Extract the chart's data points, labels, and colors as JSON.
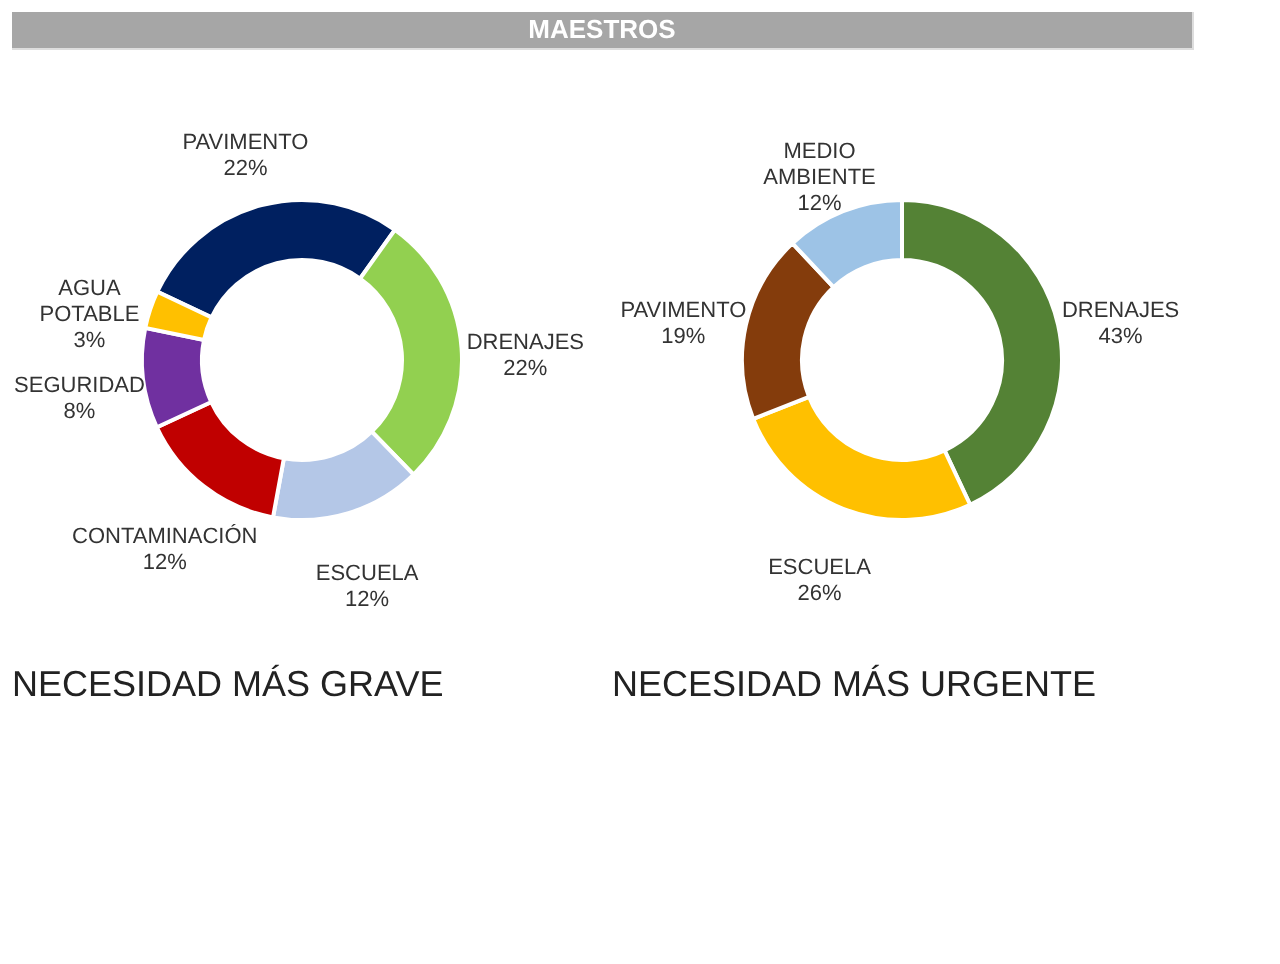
{
  "chart_data": [
    {
      "type": "donut",
      "title": "NECESIDAD MÁS GRAVE",
      "annotations": [
        "MAESTROS"
      ],
      "categories": [
        "PAVIMENTO",
        "DRENAJES",
        "ESCUELA",
        "CONTAMINACIÓN",
        "SEGURIDAD",
        "AGUA POTABLE"
      ],
      "values": [
        22,
        22,
        12,
        12,
        8,
        3
      ],
      "value_labels": [
        "22%",
        "22%",
        "12%",
        "12%",
        "8%",
        "3%"
      ],
      "colors": [
        "#002060",
        "#92d050",
        "#b4c7e7",
        "#c00000",
        "#7030a0",
        "#ffc000"
      ],
      "legend": false
    },
    {
      "type": "donut",
      "title": "NECESIDAD MÁS URGENTE",
      "categories": [
        "DRENAJES",
        "ESCUELA",
        "PAVIMENTO",
        "MEDIO AMBIENTE"
      ],
      "values": [
        43,
        26,
        19,
        12
      ],
      "value_labels": [
        "43%",
        "26%",
        "19%",
        "12%"
      ],
      "colors": [
        "#548235",
        "#ffc000",
        "#843c0c",
        "#9dc3e6"
      ],
      "legend": false
    }
  ]
}
